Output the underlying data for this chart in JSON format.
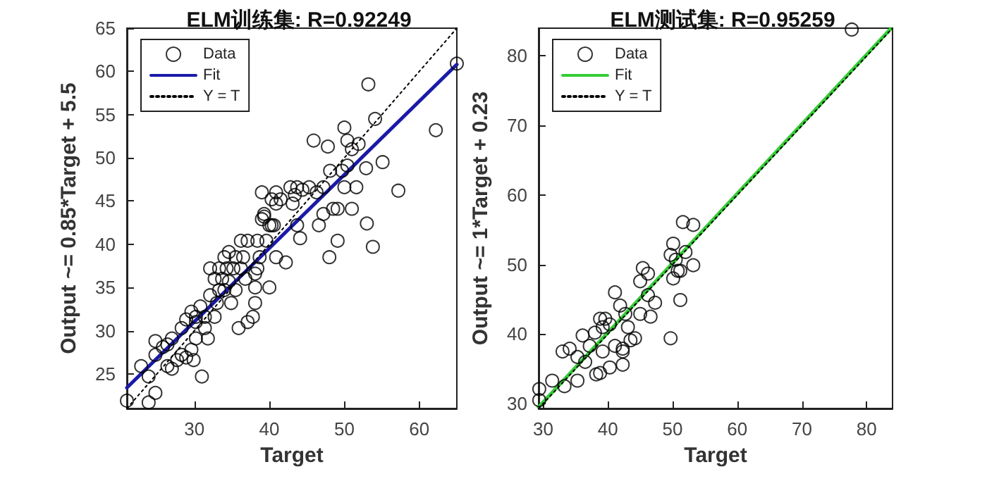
{
  "chart_data": [
    {
      "type": "scatter",
      "title": "ELM训练集: R=0.92249",
      "xlabel": "Target",
      "ylabel": "Output ~= 0.85*Target + 5.5",
      "xlim": [
        21,
        65
      ],
      "ylim": [
        21,
        65
      ],
      "xticks": [
        30,
        40,
        50,
        60
      ],
      "yticks": [
        25,
        30,
        35,
        40,
        45,
        50,
        55,
        60,
        65
      ],
      "legend": "top left",
      "grid": false,
      "series": [
        {
          "name": "Data",
          "marker": "circle",
          "color": "#000000",
          "x": [
            21,
            23.9,
            22.9,
            24.8,
            23.9,
            31.0,
            24.8,
            24.8,
            25.8,
            26.4,
            27.0,
            27.7,
            28.3,
            28.9,
            29.6,
            30.2,
            29.6,
            29.9,
            30.2,
            30.8,
            31.4,
            31.8,
            32.1,
            32.7,
            33.0,
            33.3,
            34.0,
            33.7,
            34.3,
            34.6,
            34.9,
            35.2,
            35.5,
            35.9,
            36.2,
            36.5,
            36.8,
            37.1,
            37.8,
            38.1,
            38.1,
            38.4,
            39.0,
            39.3,
            39.6,
            40.0,
            40.3,
            40.6,
            40.9,
            41.5,
            42.2,
            42.8,
            43.1,
            43.4,
            43.7,
            44.1,
            44.4,
            45.3,
            45.9,
            46.6,
            47.2,
            47.8,
            48.0,
            48.1,
            48.5,
            49.1,
            49.7,
            50.0,
            50.0,
            50.4,
            51.0,
            51.0,
            51.6,
            51.9,
            52.9,
            53.0,
            53.2,
            53.8,
            54.1,
            55.1,
            57.2,
            62.2,
            65,
            49.1,
            50.4,
            47.2,
            46.3,
            43.7,
            40.9,
            39.3,
            38.7,
            37.1,
            35.5,
            34.0,
            32.7,
            31.4,
            30.2,
            28.9,
            28.3,
            27.0,
            26.4,
            32.1,
            34.6,
            36.2,
            38.1,
            40.0,
            40.9,
            38.4,
            33.3,
            39.0,
            40.3
          ],
          "values": [
            21.9,
            21.7,
            25.9,
            22.8,
            24.7,
            24.7,
            28.8,
            27.2,
            28.1,
            25.9,
            25.6,
            26.6,
            27.2,
            31.3,
            32.2,
            31.6,
            27.8,
            26.6,
            31.0,
            32.8,
            31.6,
            29.1,
            34.1,
            36.0,
            33.2,
            34.7,
            38.5,
            36.0,
            37.2,
            35.7,
            33.2,
            37.2,
            34.7,
            30.3,
            40.4,
            38.5,
            36.0,
            31.0,
            31.6,
            33.2,
            35.0,
            40.4,
            42.9,
            43.2,
            40.4,
            35.0,
            45.2,
            42.2,
            38.5,
            45.2,
            37.9,
            46.6,
            44.7,
            45.7,
            42.2,
            40.7,
            46.3,
            46.6,
            52.0,
            42.2,
            46.6,
            51.3,
            38.5,
            48.5,
            44.1,
            40.4,
            48.5,
            53.5,
            46.6,
            49.1,
            44.1,
            51.0,
            46.6,
            51.6,
            48.8,
            42.4,
            58.5,
            39.7,
            54.5,
            49.5,
            46.2,
            53.2,
            60.9,
            44.1,
            52.0,
            43.5,
            46.0,
            46.6,
            44.7,
            43.5,
            38.5,
            40.4,
            38.5,
            34.7,
            31.6,
            30.3,
            29.1,
            26.9,
            30.3,
            29.1,
            28.4,
            37.2,
            39.1,
            37.2,
            36.6,
            42.2,
            46.0,
            37.2,
            37.2,
            46.0,
            42.2
          ]
        },
        {
          "name": "Fit",
          "type": "line",
          "marker": "none",
          "line_style": "solid",
          "color": "#1a1aa8",
          "x": [
            21,
            65
          ],
          "values": [
            23.4,
            60.8
          ]
        },
        {
          "name": "Y = T",
          "type": "line",
          "marker": "none",
          "line_style": "dotted",
          "color": "#000000",
          "x": [
            21,
            65
          ],
          "values": [
            21,
            65
          ]
        }
      ]
    },
    {
      "type": "scatter",
      "title": "ELM测试集: R=0.95259",
      "xlabel": "Target",
      "ylabel": "Output ~= 1*Target + 0.23",
      "xlim": [
        29.3,
        84
      ],
      "ylim": [
        29.3,
        84
      ],
      "xticks": [
        30,
        40,
        50,
        60,
        70,
        80
      ],
      "yticks": [
        30,
        40,
        50,
        60,
        70,
        80
      ],
      "legend": "top left",
      "grid": false,
      "series": [
        {
          "name": "Data",
          "marker": "circle",
          "color": "#000000",
          "x": [
            29.4,
            29.4,
            31.4,
            33.0,
            33.3,
            34.1,
            35.3,
            35.3,
            36.1,
            36.5,
            37.2,
            38.0,
            38.2,
            38.8,
            39.2,
            39.2,
            39.6,
            40.3,
            41.1,
            41.9,
            42.3,
            42.3,
            43.1,
            43.5,
            44.2,
            45.0,
            45.0,
            45.4,
            46.2,
            46.6,
            47.3,
            50.1,
            50.1,
            50.5,
            51.2,
            51.6,
            53.2,
            52.0,
            53.2,
            51.2,
            49.7,
            46.2,
            42.7,
            77.7,
            38.8,
            40.3,
            41.1,
            42.3,
            50.8,
            49.7
          ],
          "values": [
            32.1,
            30.5,
            33.3,
            37.5,
            32.5,
            37.9,
            33.3,
            36.7,
            39.8,
            36.0,
            38.3,
            40.2,
            34.2,
            42.2,
            41.0,
            37.5,
            42.2,
            41.4,
            46.0,
            44.1,
            37.5,
            35.6,
            41.0,
            39.1,
            39.4,
            47.6,
            42.9,
            49.5,
            48.7,
            42.5,
            44.5,
            53.0,
            48.0,
            50.7,
            49.1,
            56.1,
            55.7,
            51.8,
            49.9,
            44.9,
            39.4,
            45.6,
            42.9,
            83.8,
            34.4,
            35.2,
            38.3,
            37.9,
            49.1,
            51.4
          ]
        },
        {
          "name": "Fit",
          "type": "line",
          "marker": "none",
          "line_style": "solid",
          "color": "#33cc33",
          "x": [
            29.3,
            83.7
          ],
          "values": [
            29.5,
            83.9
          ]
        },
        {
          "name": "Y = T",
          "type": "line",
          "marker": "none",
          "line_style": "dotted",
          "color": "#000000",
          "x": [
            29.3,
            84
          ],
          "values": [
            29.3,
            84
          ]
        }
      ]
    }
  ]
}
